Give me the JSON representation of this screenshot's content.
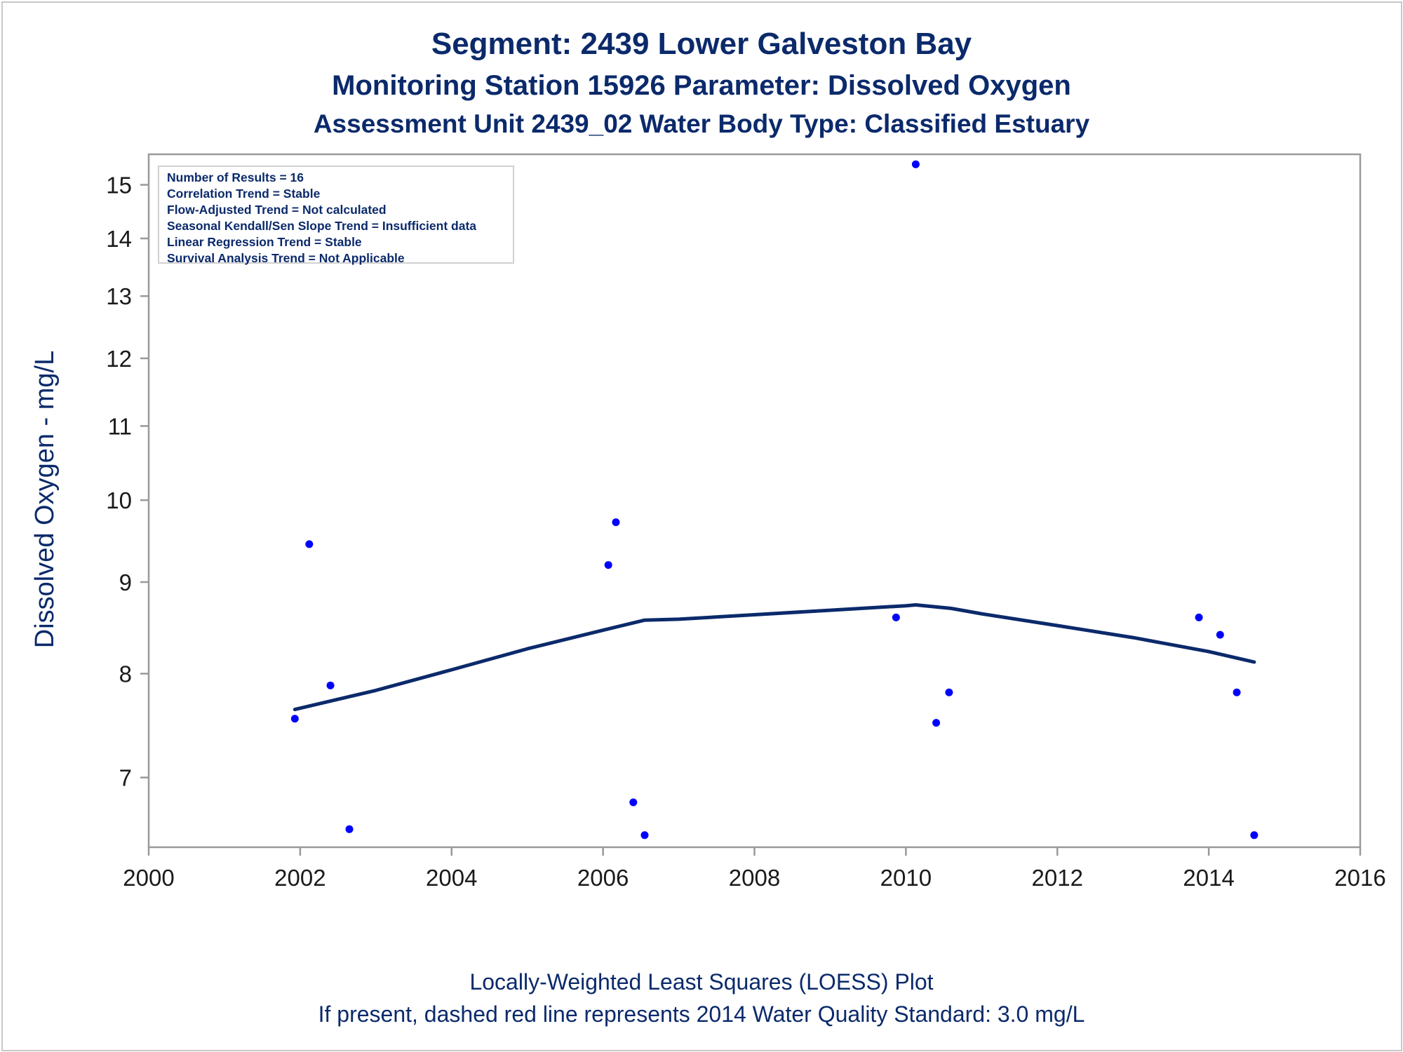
{
  "title": {
    "line1": "Segment: 2439  Lower Galveston Bay",
    "line2": "Monitoring Station 15926 Parameter: Dissolved Oxygen",
    "line3": "Assessment Unit 2439_02   Water Body Type: Classified Estuary"
  },
  "footer": {
    "line1": "Locally-Weighted Least Squares (LOESS) Plot",
    "line2": "If present, dashed red line represents 2014 Water Quality Standard: 3.0 mg/L"
  },
  "stats_box": [
    "Number of Results = 16",
    "Correlation Trend = Stable",
    "Flow-Adjusted Trend = Not calculated",
    "Seasonal Kendall/Sen Slope Trend = Insufficient data",
    "Linear Regression Trend = Stable",
    "Survival Analysis Trend = Not Applicable"
  ],
  "colors": {
    "points": "#0000ff",
    "loess": "#0b2a6b",
    "text": "#0b2a6b",
    "axis": "#999999"
  },
  "chart_data": {
    "type": "scatter",
    "xlabel": "",
    "ylabel": "Dissolved Oxygen - mg/L",
    "y_scale": "log",
    "xlim": [
      2000,
      2016
    ],
    "ylim": [
      6.4,
      15.6
    ],
    "x_ticks": [
      2000,
      2002,
      2004,
      2006,
      2008,
      2010,
      2012,
      2014,
      2016
    ],
    "y_ticks": [
      7,
      8,
      9,
      10,
      11,
      12,
      13,
      14,
      15
    ],
    "grid": false,
    "points": [
      {
        "x": 2001.93,
        "y": 7.55
      },
      {
        "x": 2002.12,
        "y": 9.45
      },
      {
        "x": 2002.4,
        "y": 7.88
      },
      {
        "x": 2002.65,
        "y": 6.55
      },
      {
        "x": 2006.07,
        "y": 9.2
      },
      {
        "x": 2006.17,
        "y": 9.72
      },
      {
        "x": 2006.4,
        "y": 6.78
      },
      {
        "x": 2006.55,
        "y": 6.5
      },
      {
        "x": 2009.87,
        "y": 8.6
      },
      {
        "x": 2010.13,
        "y": 15.4
      },
      {
        "x": 2010.4,
        "y": 7.51
      },
      {
        "x": 2010.57,
        "y": 7.81
      },
      {
        "x": 2013.87,
        "y": 8.6
      },
      {
        "x": 2014.15,
        "y": 8.41
      },
      {
        "x": 2014.37,
        "y": 7.81
      },
      {
        "x": 2014.6,
        "y": 6.5
      }
    ],
    "loess": [
      {
        "x": 2001.93,
        "y": 7.64
      },
      {
        "x": 2003.0,
        "y": 7.83
      },
      {
        "x": 2004.0,
        "y": 8.04
      },
      {
        "x": 2005.0,
        "y": 8.26
      },
      {
        "x": 2006.0,
        "y": 8.46
      },
      {
        "x": 2006.55,
        "y": 8.57
      },
      {
        "x": 2007.0,
        "y": 8.58
      },
      {
        "x": 2008.0,
        "y": 8.63
      },
      {
        "x": 2009.0,
        "y": 8.68
      },
      {
        "x": 2010.0,
        "y": 8.73
      },
      {
        "x": 2010.13,
        "y": 8.74
      },
      {
        "x": 2010.6,
        "y": 8.7
      },
      {
        "x": 2011.0,
        "y": 8.64
      },
      {
        "x": 2012.0,
        "y": 8.51
      },
      {
        "x": 2013.0,
        "y": 8.38
      },
      {
        "x": 2014.0,
        "y": 8.23
      },
      {
        "x": 2014.6,
        "y": 8.12
      }
    ]
  }
}
